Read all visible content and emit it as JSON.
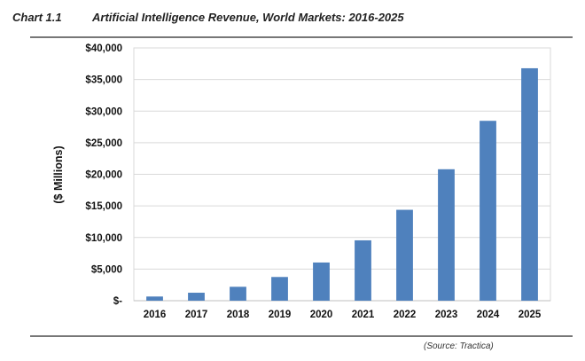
{
  "header": {
    "chart_number": "Chart 1.1",
    "title": "Artificial Intelligence Revenue, World Markets: 2016-2025"
  },
  "source": "(Source: Tractica)",
  "chart_data": {
    "type": "bar",
    "title": "Artificial Intelligence Revenue, World Markets: 2016-2025",
    "xlabel": "",
    "ylabel": "($ Millions)",
    "categories": [
      "2016",
      "2017",
      "2018",
      "2019",
      "2020",
      "2021",
      "2022",
      "2023",
      "2024",
      "2025"
    ],
    "values": [
      660,
      1260,
      2200,
      3750,
      6040,
      9550,
      14380,
      20800,
      28460,
      36780
    ],
    "ylim": [
      0,
      40000
    ],
    "yticks": [
      0,
      5000,
      10000,
      15000,
      20000,
      25000,
      30000,
      35000,
      40000
    ],
    "ytick_labels": [
      "$-",
      "$5,000",
      "$10,000",
      "$15,000",
      "$20,000",
      "$25,000",
      "$30,000",
      "$35,000",
      "$40,000"
    ],
    "grid": true,
    "bar_color": "#4f81bd",
    "gridline_color": "#d9d9d9"
  }
}
